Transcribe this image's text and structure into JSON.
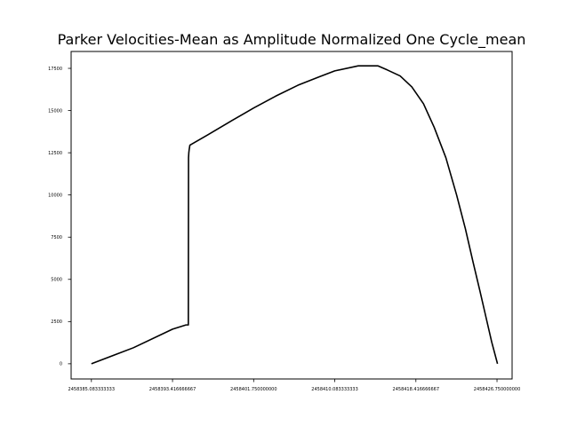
{
  "chart_data": {
    "type": "line",
    "title": "Parker Velocities-Mean as Amplitude Normalized One Cycle_mean",
    "xlabel": "",
    "ylabel": "",
    "xlim": [
      2458383.0,
      2458428.3
    ],
    "ylim": [
      -900,
      18500
    ],
    "grid": false,
    "x_ticks": [
      {
        "value": 2458385.083333333,
        "label": "2458385.083333333"
      },
      {
        "value": 2458393.416666667,
        "label": "2458393.416666667"
      },
      {
        "value": 2458401.75,
        "label": "2458401.750000000"
      },
      {
        "value": 2458410.083333333,
        "label": "2458410.083333333"
      },
      {
        "value": 2458418.416666667,
        "label": "2458418.416666667"
      },
      {
        "value": 2458426.75,
        "label": "2458426.750000000"
      }
    ],
    "y_ticks": [
      {
        "value": 0,
        "label": "0"
      },
      {
        "value": 2500,
        "label": "2500"
      },
      {
        "value": 5000,
        "label": "5000"
      },
      {
        "value": 7500,
        "label": "7500"
      },
      {
        "value": 10000,
        "label": "10000"
      },
      {
        "value": 12500,
        "label": "12500"
      },
      {
        "value": 15000,
        "label": "15000"
      },
      {
        "value": 17500,
        "label": "17500"
      }
    ],
    "series": [
      {
        "color": "#000000",
        "x": [
          2458385.083,
          2458389.4,
          2458393.42,
          2458394.8,
          2458395.02,
          2458395.04,
          2458395.06,
          2458395.09,
          2458395.13,
          2458395.2,
          2458397.0,
          2458399.5,
          2458401.75,
          2458404.0,
          2458406.3,
          2458408.5,
          2458410.08,
          2458412.5,
          2458414.5,
          2458415.5,
          2458416.8,
          2458418.0,
          2458419.2,
          2458420.3,
          2458421.5,
          2458422.6,
          2458423.5,
          2458424.3,
          2458425.0,
          2458425.6,
          2458426.2,
          2458426.8
        ],
        "y": [
          0,
          950,
          2050,
          2300,
          2300,
          2300,
          12200,
          12500,
          12700,
          12950,
          13550,
          14400,
          15150,
          15850,
          16500,
          17000,
          17350,
          17650,
          17650,
          17400,
          17050,
          16400,
          15400,
          14000,
          12200,
          10000,
          8000,
          6000,
          4300,
          2800,
          1300,
          0
        ]
      }
    ]
  }
}
